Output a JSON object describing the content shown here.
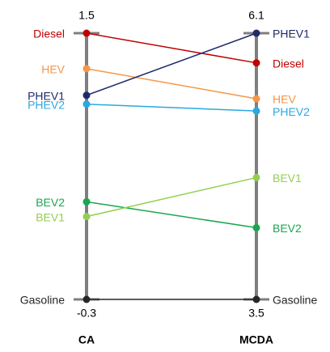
{
  "chart_data": {
    "type": "slope",
    "categories": [
      "CA",
      "MCDA"
    ],
    "ylim": [
      -0.3,
      1.5
    ],
    "yticks": [
      -0.3,
      1.5
    ],
    "y2lim": [
      3.5,
      6.1
    ],
    "y2ticks": [
      3.5,
      6.1
    ],
    "series": [
      {
        "name": "Diesel",
        "color": "#c00000",
        "values": [
          1.5,
          5.81
        ]
      },
      {
        "name": "HEV",
        "color": "#f79646",
        "values": [
          1.26,
          5.46
        ]
      },
      {
        "name": "PHEV1",
        "color": "#1f2a6b",
        "values": [
          1.08,
          6.1
        ]
      },
      {
        "name": "PHEV2",
        "color": "#29a8e0",
        "values": [
          1.02,
          5.34
        ]
      },
      {
        "name": "BEV2",
        "color": "#1aa64f",
        "values": [
          0.36,
          4.2
        ]
      },
      {
        "name": "BEV1",
        "color": "#92d050",
        "values": [
          0.26,
          4.69
        ]
      },
      {
        "name": "Gasoline",
        "color": "#262626",
        "values": [
          -0.3,
          3.5
        ]
      }
    ]
  }
}
